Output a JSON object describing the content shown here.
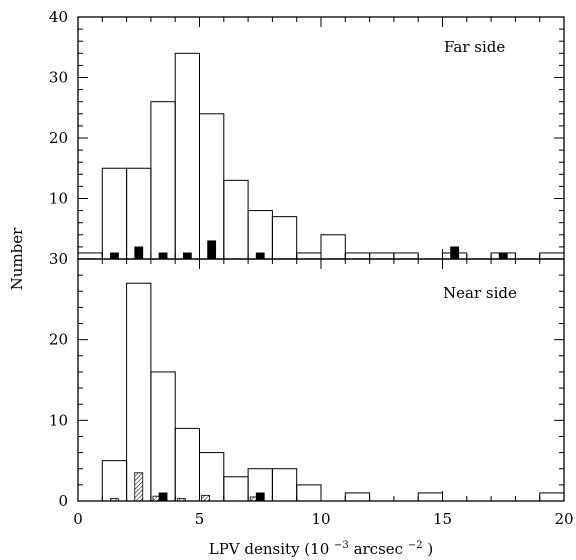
{
  "chart_data": {
    "type": "bar",
    "xlabel_main": "LPV density (10",
    "xlabel_exponent": "−3",
    "xlabel_unit": " arcsec",
    "xlabel_unit_exponent": "−2",
    "xlabel_close": ")",
    "ylabel": "Number",
    "xlim": [
      0,
      20
    ],
    "x_ticks": [
      0,
      5,
      10,
      15,
      20
    ],
    "bin_width": 1,
    "panels": [
      {
        "id": "far",
        "label": "Far side",
        "ylim": [
          0,
          40
        ],
        "y_ticks": [
          0,
          10,
          20,
          30,
          40
        ],
        "series": [
          {
            "style": "open",
            "bins": [
              [
                0,
                1
              ],
              [
                1,
                15
              ],
              [
                2,
                15
              ],
              [
                3,
                26
              ],
              [
                4,
                34
              ],
              [
                5,
                24
              ],
              [
                6,
                13
              ],
              [
                7,
                8
              ],
              [
                8,
                7
              ],
              [
                9,
                1
              ],
              [
                10,
                4
              ],
              [
                11,
                1
              ],
              [
                12,
                1
              ],
              [
                13,
                1
              ],
              [
                15,
                1
              ],
              [
                17,
                1
              ],
              [
                19,
                1
              ]
            ]
          },
          {
            "style": "filled",
            "bins": [
              [
                1.5,
                1
              ],
              [
                2.5,
                2
              ],
              [
                3.5,
                1
              ],
              [
                4.5,
                1
              ],
              [
                5.5,
                3
              ],
              [
                7.5,
                1
              ],
              [
                15.5,
                2
              ],
              [
                17.5,
                1
              ]
            ]
          }
        ]
      },
      {
        "id": "near",
        "label": "Near side",
        "ylim": [
          0,
          30
        ],
        "y_ticks": [
          0,
          10,
          20,
          30
        ],
        "series": [
          {
            "style": "open",
            "bins": [
              [
                1,
                5
              ],
              [
                2,
                27
              ],
              [
                3,
                16
              ],
              [
                4,
                9
              ],
              [
                5,
                6
              ],
              [
                6,
                3
              ],
              [
                7,
                4
              ],
              [
                8,
                4
              ],
              [
                9,
                2
              ],
              [
                11,
                1
              ],
              [
                14,
                1
              ],
              [
                19,
                1
              ]
            ]
          },
          {
            "style": "filled",
            "bins": [
              [
                3.5,
                1
              ],
              [
                7.5,
                1
              ]
            ]
          },
          {
            "style": "hatched",
            "bins": [
              [
                1.5,
                0.3
              ],
              [
                2.5,
                3.5
              ],
              [
                3.25,
                0.6
              ],
              [
                4.25,
                0.3
              ],
              [
                5.25,
                0.7
              ],
              [
                7.25,
                0.5
              ]
            ]
          }
        ]
      }
    ]
  }
}
